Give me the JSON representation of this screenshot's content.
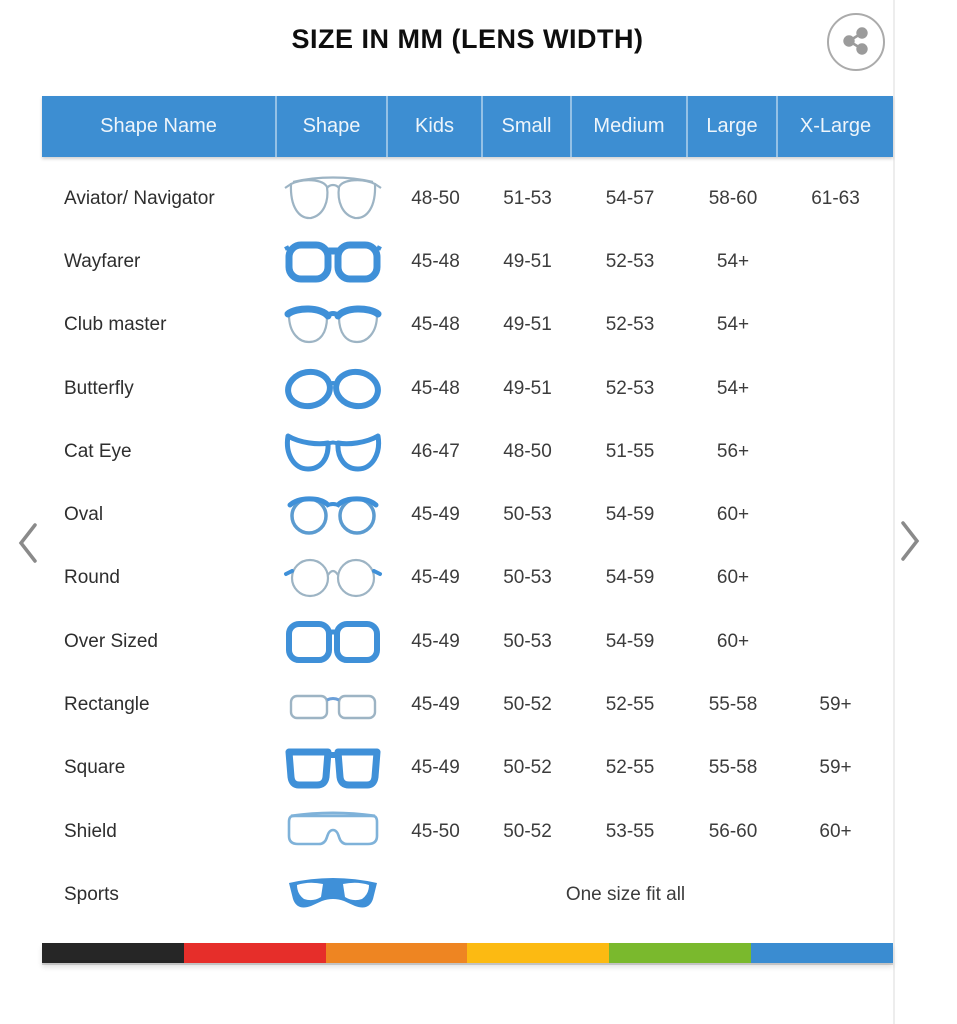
{
  "page": {
    "title": "SIZE IN MM (LENS WIDTH)"
  },
  "table": {
    "columns": [
      "Shape Name",
      "Shape",
      "Kids",
      "Small",
      "Medium",
      "Large",
      "X-Large"
    ],
    "rows": [
      {
        "name": "Aviator/ Navigator",
        "icon": "aviator",
        "kids": "48-50",
        "small": "51-53",
        "medium": "54-57",
        "large": "58-60",
        "xlarge": "61-63"
      },
      {
        "name": "Wayfarer",
        "icon": "wayfarer",
        "kids": "45-48",
        "small": "49-51",
        "medium": "52-53",
        "large": "54+",
        "xlarge": ""
      },
      {
        "name": "Club master",
        "icon": "clubmaster",
        "kids": "45-48",
        "small": "49-51",
        "medium": "52-53",
        "large": "54+",
        "xlarge": ""
      },
      {
        "name": "Butterfly",
        "icon": "butterfly",
        "kids": "45-48",
        "small": "49-51",
        "medium": "52-53",
        "large": "54+",
        "xlarge": ""
      },
      {
        "name": "Cat Eye",
        "icon": "cateye",
        "kids": "46-47",
        "small": "48-50",
        "medium": "51-55",
        "large": "56+",
        "xlarge": ""
      },
      {
        "name": "Oval",
        "icon": "oval",
        "kids": "45-49",
        "small": "50-53",
        "medium": "54-59",
        "large": "60+",
        "xlarge": ""
      },
      {
        "name": "Round",
        "icon": "round",
        "kids": "45-49",
        "small": "50-53",
        "medium": "54-59",
        "large": "60+",
        "xlarge": ""
      },
      {
        "name": "Over Sized",
        "icon": "oversized",
        "kids": "45-49",
        "small": "50-53",
        "medium": "54-59",
        "large": "60+",
        "xlarge": ""
      },
      {
        "name": "Rectangle",
        "icon": "rectangle",
        "kids": "45-49",
        "small": "50-52",
        "medium": "52-55",
        "large": "55-58",
        "xlarge": "59+"
      },
      {
        "name": "Square",
        "icon": "square",
        "kids": "45-49",
        "small": "50-52",
        "medium": "52-55",
        "large": "55-58",
        "xlarge": "59+"
      },
      {
        "name": "Shield",
        "icon": "shield",
        "kids": "45-50",
        "small": "50-52",
        "medium": "53-55",
        "large": "56-60",
        "xlarge": "60+"
      },
      {
        "name": "Sports",
        "icon": "sports",
        "span": "One size fit all"
      }
    ]
  },
  "footer_stripe": {
    "colors": [
      "#262626",
      "#e62e2a",
      "#ee8522",
      "#fcba12",
      "#7ab92d",
      "#3a8cd1"
    ]
  },
  "theme": {
    "header_bg": "#3d8ed2",
    "header_text": "#eef5fb",
    "frame_blue": "#3f90d8",
    "thin_outline": "#9db4c4",
    "share_gray": "#9b9b9b"
  }
}
